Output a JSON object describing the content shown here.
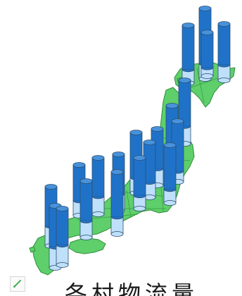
{
  "caption": {
    "text": "各村物流量"
  },
  "thumbnail_icon": "mini-map-icon",
  "colors": {
    "land": "#5ecf6a",
    "land_outline": "#2f8f3a",
    "cylinder_fill_dark": "#1f72c8",
    "cylinder_fill_light": "#bfe0fb",
    "cylinder_top": "#4792dc",
    "cylinder_outline": "#2e4f6e"
  },
  "cylinders": [
    {
      "id": "hk-1",
      "fill_fraction": 0.78
    },
    {
      "id": "hk-2",
      "fill_fraction": 0.72
    },
    {
      "id": "hk-3",
      "fill_fraction": 0.76
    },
    {
      "id": "hk-4",
      "fill_fraction": 0.8
    },
    {
      "id": "th-1",
      "fill_fraction": 0.72
    },
    {
      "id": "th-2",
      "fill_fraction": 0.75
    },
    {
      "id": "th-3",
      "fill_fraction": 0.82
    },
    {
      "id": "kt-1",
      "fill_fraction": 0.7
    },
    {
      "id": "kt-2",
      "fill_fraction": 0.74
    },
    {
      "id": "kt-3",
      "fill_fraction": 0.72
    },
    {
      "id": "kt-4",
      "fill_fraction": 0.76
    },
    {
      "id": "cb-1",
      "fill_fraction": 0.7
    },
    {
      "id": "cb-2",
      "fill_fraction": 0.68
    },
    {
      "id": "kn-1",
      "fill_fraction": 0.74
    },
    {
      "id": "kn-2",
      "fill_fraction": 0.7
    },
    {
      "id": "kn-3",
      "fill_fraction": 0.72
    },
    {
      "id": "cg-1",
      "fill_fraction": 0.7
    },
    {
      "id": "cg-2",
      "fill_fraction": 0.66
    },
    {
      "id": "ky-1",
      "fill_fraction": 0.66
    },
    {
      "id": "ky-2",
      "fill_fraction": 0.64
    }
  ]
}
